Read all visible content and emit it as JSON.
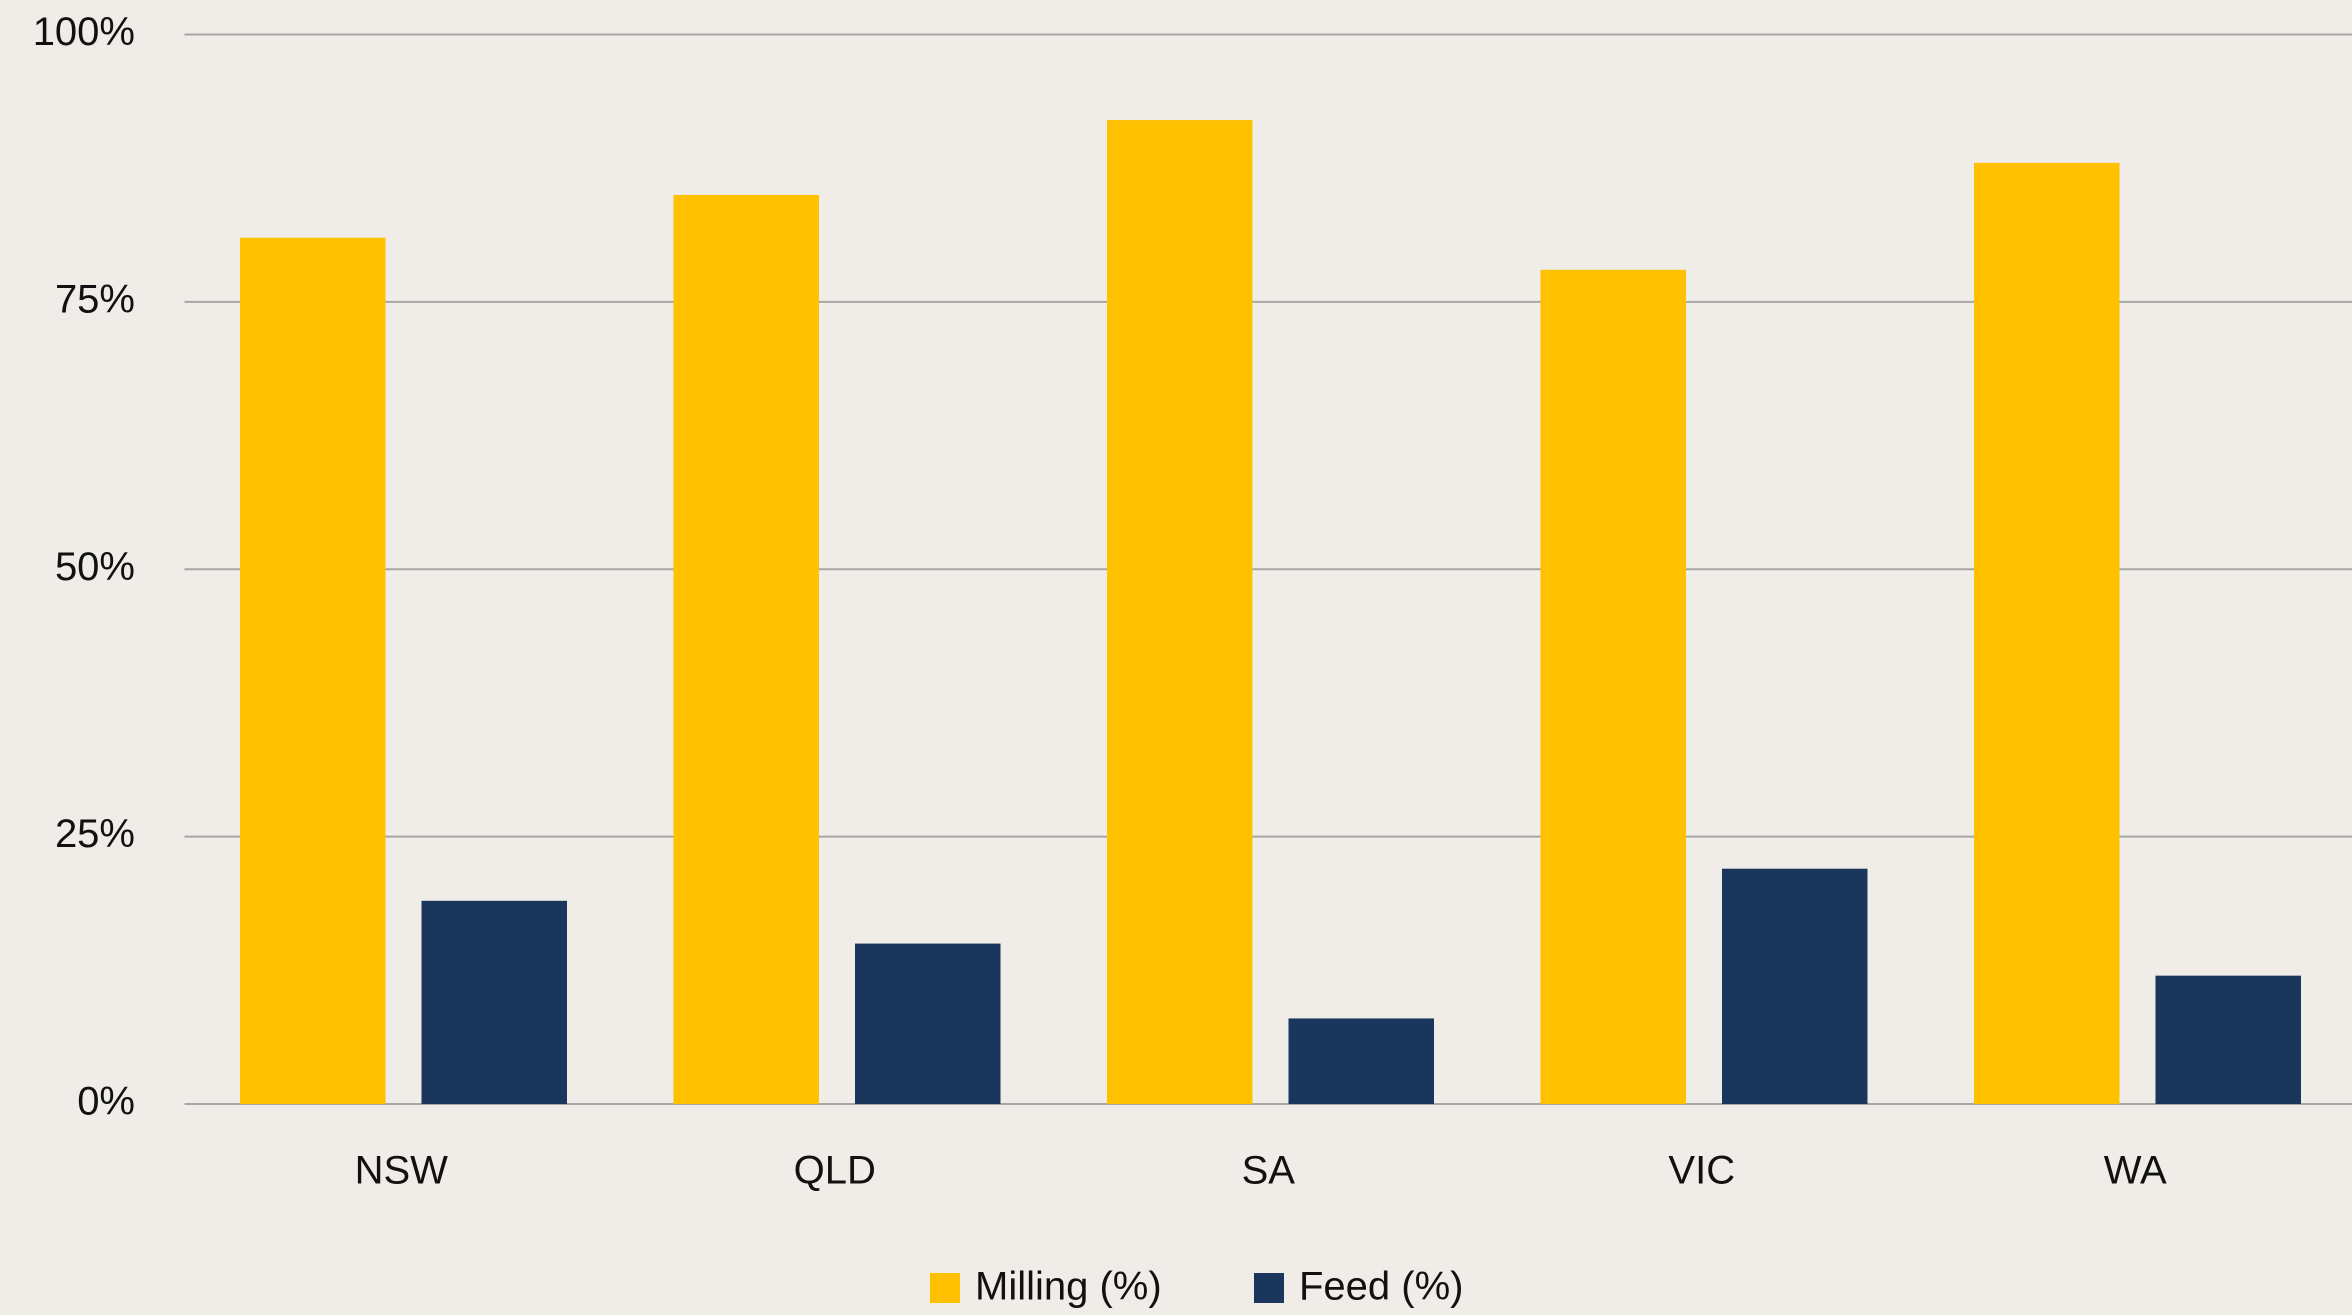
{
  "chart_data": {
    "type": "bar",
    "categories": [
      "NSW",
      "QLD",
      "SA",
      "VIC",
      "WA"
    ],
    "series": [
      {
        "name": "Milling (%)",
        "color": "#ffc000",
        "values": [
          81,
          85,
          92,
          78,
          88
        ]
      },
      {
        "name": "Feed (%)",
        "color": "#1a365d",
        "values": [
          19,
          15,
          8,
          22,
          12
        ]
      }
    ],
    "ylim": [
      0,
      100
    ],
    "yticks": [
      {
        "value": 0,
        "label": "0%"
      },
      {
        "value": 25,
        "label": "25%"
      },
      {
        "value": 50,
        "label": "50%"
      },
      {
        "value": 75,
        "label": "75%"
      },
      {
        "value": 100,
        "label": "100%"
      }
    ],
    "grid": true,
    "legend": "bottom"
  }
}
